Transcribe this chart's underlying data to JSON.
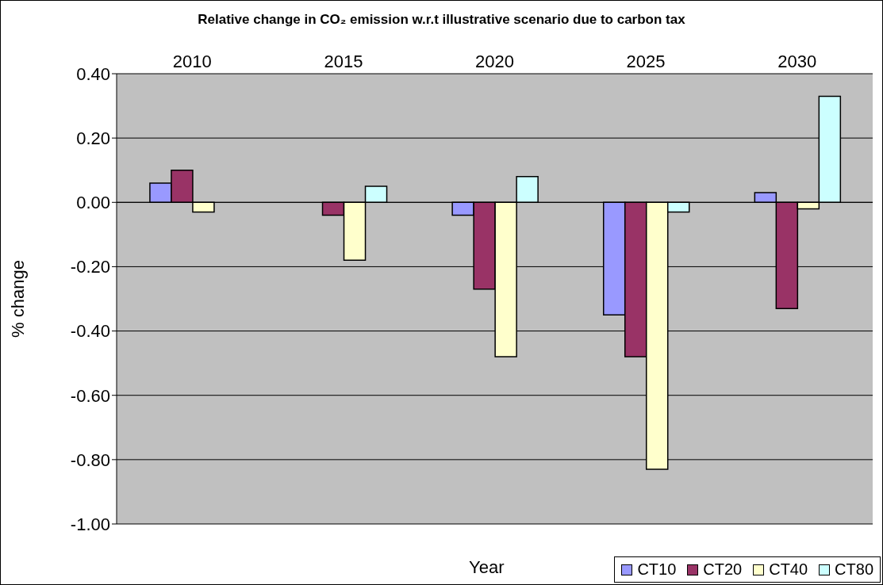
{
  "chart_data": {
    "type": "bar",
    "title": "Relative change in CO₂ emission w.r.t illustrative scenario due to carbon tax",
    "xlabel": "Year",
    "ylabel": "% change",
    "categories": [
      "2010",
      "2015",
      "2020",
      "2025",
      "2030"
    ],
    "series": [
      {
        "name": "CT10",
        "color": "#9999ff",
        "values": [
          0.06,
          0,
          -0.04,
          -0.35,
          0.03
        ]
      },
      {
        "name": "CT20",
        "color": "#993366",
        "values": [
          0.1,
          -0.04,
          -0.27,
          -0.48,
          -0.33
        ]
      },
      {
        "name": "CT40",
        "color": "#ffffcc",
        "values": [
          -0.03,
          -0.18,
          -0.48,
          -0.83,
          -0.02
        ]
      },
      {
        "name": "CT80",
        "color": "#ccffff",
        "values": [
          0,
          0.05,
          0.08,
          -0.03,
          0.33
        ]
      }
    ],
    "ylim": [
      -1,
      0.4
    ],
    "yticks": [
      {
        "value": -1,
        "label": "-1.00"
      },
      {
        "value": -0.8,
        "label": "-0.80"
      },
      {
        "value": -0.6,
        "label": "-0.60"
      },
      {
        "value": -0.4,
        "label": "-0.40"
      },
      {
        "value": -0.2,
        "label": "-0.20"
      },
      {
        "value": 0,
        "label": "0.00"
      },
      {
        "value": 0.2,
        "label": "0.20"
      },
      {
        "value": 0.4,
        "label": "0.40"
      }
    ],
    "grid": "y",
    "legend": "bottom right"
  }
}
